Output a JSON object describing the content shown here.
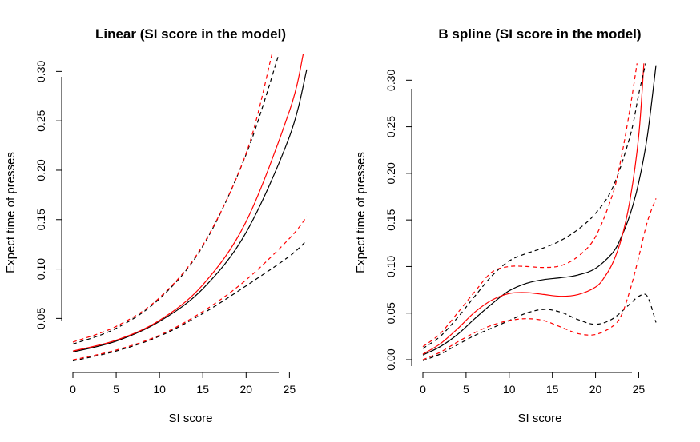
{
  "chart_data": [
    {
      "type": "line",
      "title": "Linear (SI score in the model)",
      "xlabel": "SI score",
      "ylabel": "Expect time of presses",
      "xlim": [
        0,
        27
      ],
      "ylim": [
        0.005,
        0.31
      ],
      "xticks": [
        "0",
        "5",
        "10",
        "15",
        "20",
        "25"
      ],
      "yticks": [
        "0.05",
        "0.10",
        "0.15",
        "0.20",
        "0.25",
        "0.30"
      ],
      "series": [
        {
          "color": "#000000",
          "style": "solid",
          "x": [
            0,
            5,
            10,
            15,
            20,
            25,
            27
          ],
          "y": [
            0.016,
            0.027,
            0.047,
            0.08,
            0.137,
            0.234,
            0.302
          ]
        },
        {
          "color": "#ff0000",
          "style": "solid",
          "x": [
            0,
            5,
            10,
            15,
            20,
            25,
            26.6
          ],
          "y": [
            0.017,
            0.028,
            0.048,
            0.084,
            0.148,
            0.26,
            0.318
          ]
        },
        {
          "color": "#000000",
          "style": "dashed",
          "x": [
            0,
            5,
            10,
            15,
            20,
            23.8
          ],
          "y": [
            0.024,
            0.04,
            0.07,
            0.123,
            0.216,
            0.318
          ]
        },
        {
          "color": "#ff0000",
          "style": "dashed",
          "x": [
            0,
            5,
            10,
            15,
            20,
            23.0
          ],
          "y": [
            0.026,
            0.042,
            0.071,
            0.124,
            0.217,
            0.318
          ]
        },
        {
          "color": "#000000",
          "style": "dashed",
          "x": [
            0,
            5,
            10,
            15,
            20,
            25,
            27
          ],
          "y": [
            0.007,
            0.017,
            0.032,
            0.055,
            0.083,
            0.113,
            0.129
          ]
        },
        {
          "color": "#ff0000",
          "style": "dashed",
          "x": [
            0,
            5,
            10,
            15,
            20,
            25,
            27
          ],
          "y": [
            0.008,
            0.018,
            0.033,
            0.057,
            0.089,
            0.131,
            0.153
          ]
        }
      ]
    },
    {
      "type": "line",
      "title": "B spline (SI score in the model)",
      "xlabel": "SI score",
      "ylabel": "Expect time of presses",
      "xlim": [
        0,
        27
      ],
      "ylim": [
        0,
        0.32
      ],
      "xticks": [
        "0",
        "5",
        "10",
        "15",
        "20",
        "25"
      ],
      "yticks": [
        "0.00",
        "0.05",
        "0.10",
        "0.15",
        "0.20",
        "0.25",
        "0.30"
      ],
      "series": [
        {
          "color": "#000000",
          "style": "solid",
          "x": [
            0,
            2,
            4,
            6,
            8,
            10,
            12,
            14,
            16,
            18,
            20,
            22,
            23,
            24,
            25,
            26,
            27
          ],
          "y": [
            0.005,
            0.014,
            0.027,
            0.044,
            0.06,
            0.074,
            0.082,
            0.086,
            0.088,
            0.091,
            0.098,
            0.115,
            0.132,
            0.156,
            0.19,
            0.24,
            0.316
          ]
        },
        {
          "color": "#ff0000",
          "style": "solid",
          "x": [
            0,
            2,
            4,
            6,
            8,
            10,
            12,
            14,
            16,
            18,
            20,
            21,
            22,
            23,
            24,
            25,
            25.6
          ],
          "y": [
            0.006,
            0.017,
            0.033,
            0.051,
            0.064,
            0.071,
            0.072,
            0.07,
            0.068,
            0.07,
            0.078,
            0.088,
            0.104,
            0.13,
            0.172,
            0.24,
            0.318
          ]
        },
        {
          "color": "#000000",
          "style": "dashed",
          "x": [
            0,
            2,
            4,
            6,
            8,
            10,
            12,
            14,
            16,
            18,
            20,
            22,
            24,
            25,
            25.8
          ],
          "y": [
            0.012,
            0.025,
            0.045,
            0.068,
            0.09,
            0.106,
            0.114,
            0.12,
            0.128,
            0.14,
            0.157,
            0.185,
            0.24,
            0.285,
            0.318
          ]
        },
        {
          "color": "#ff0000",
          "style": "dashed",
          "x": [
            0,
            2,
            4,
            6,
            8,
            10,
            12,
            14,
            16,
            18,
            20,
            22,
            23,
            24,
            24.8
          ],
          "y": [
            0.014,
            0.028,
            0.05,
            0.073,
            0.094,
            0.1,
            0.1,
            0.099,
            0.101,
            0.111,
            0.132,
            0.178,
            0.218,
            0.27,
            0.318
          ]
        },
        {
          "color": "#000000",
          "style": "dashed",
          "x": [
            0,
            2,
            4,
            6,
            8,
            10,
            12,
            14,
            16,
            18,
            20,
            22,
            24,
            25,
            26,
            27
          ],
          "y": [
            -0.001,
            0.006,
            0.016,
            0.026,
            0.034,
            0.042,
            0.05,
            0.054,
            0.051,
            0.043,
            0.038,
            0.044,
            0.06,
            0.068,
            0.068,
            0.04
          ]
        },
        {
          "color": "#ff0000",
          "style": "dashed",
          "x": [
            0,
            2,
            4,
            6,
            8,
            10,
            12,
            14,
            16,
            18,
            20,
            22,
            23,
            24,
            25,
            26,
            27
          ],
          "y": [
            0.0,
            0.008,
            0.019,
            0.029,
            0.037,
            0.042,
            0.044,
            0.042,
            0.035,
            0.028,
            0.027,
            0.036,
            0.048,
            0.075,
            0.11,
            0.148,
            0.173
          ]
        }
      ]
    }
  ]
}
